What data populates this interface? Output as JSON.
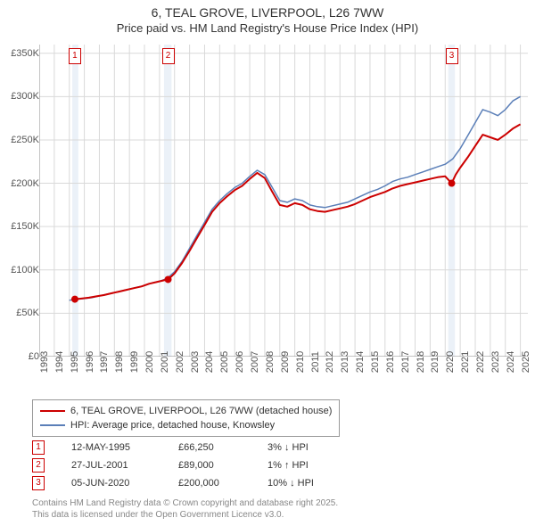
{
  "title": {
    "line1": "6, TEAL GROVE, LIVERPOOL, L26 7WW",
    "line2": "Price paid vs. HM Land Registry's House Price Index (HPI)"
  },
  "chart": {
    "type": "line",
    "background_color": "#ffffff",
    "grid_color": "#d9d9d9",
    "grid_width": 1,
    "axis_color": "#888",
    "x_axis": {
      "min": 1993,
      "max": 2025.5,
      "ticks": [
        1993,
        1994,
        1995,
        1996,
        1997,
        1998,
        1999,
        2000,
        2001,
        2002,
        2003,
        2004,
        2005,
        2006,
        2007,
        2008,
        2009,
        2010,
        2011,
        2012,
        2013,
        2014,
        2015,
        2016,
        2017,
        2018,
        2019,
        2020,
        2021,
        2022,
        2023,
        2024,
        2025
      ],
      "tick_labels": [
        "1993",
        "1994",
        "1995",
        "1996",
        "1997",
        "1998",
        "1999",
        "2000",
        "2001",
        "2002",
        "2003",
        "2004",
        "2005",
        "2006",
        "2007",
        "2008",
        "2009",
        "2010",
        "2011",
        "2012",
        "2013",
        "2014",
        "2015",
        "2016",
        "2017",
        "2018",
        "2019",
        "2020",
        "2021",
        "2022",
        "2023",
        "2024",
        "2025"
      ],
      "tick_fontsize": 11,
      "rotation": -90
    },
    "y_axis": {
      "min": 0,
      "max": 360000,
      "ticks": [
        0,
        50000,
        100000,
        150000,
        200000,
        250000,
        300000,
        350000
      ],
      "tick_labels": [
        "£0",
        "£50K",
        "£100K",
        "£150K",
        "£200K",
        "£250K",
        "£300K",
        "£350K"
      ],
      "tick_fontsize": 11
    },
    "vertical_bands": [
      {
        "x_start": 1995.2,
        "x_end": 1995.6,
        "color": "rgba(120,160,210,0.15)"
      },
      {
        "x_start": 2001.3,
        "x_end": 2001.8,
        "color": "rgba(120,160,210,0.15)"
      },
      {
        "x_start": 2020.2,
        "x_end": 2020.65,
        "color": "rgba(120,160,210,0.15)"
      }
    ],
    "series": [
      {
        "name": "hpi",
        "label": "HPI: Average price, detached house, Knowsley",
        "color": "#5b7fb8",
        "line_width": 1.5,
        "data": [
          [
            1995.0,
            65000
          ],
          [
            1995.5,
            66000
          ],
          [
            1996.0,
            67000
          ],
          [
            1996.5,
            68000
          ],
          [
            1997.0,
            70000
          ],
          [
            1997.5,
            72000
          ],
          [
            1998.0,
            74000
          ],
          [
            1998.5,
            76000
          ],
          [
            1999.0,
            78000
          ],
          [
            1999.5,
            80000
          ],
          [
            2000.0,
            82000
          ],
          [
            2000.5,
            85000
          ],
          [
            2001.0,
            87000
          ],
          [
            2001.5,
            90000
          ],
          [
            2002.0,
            98000
          ],
          [
            2002.5,
            110000
          ],
          [
            2003.0,
            125000
          ],
          [
            2003.5,
            140000
          ],
          [
            2004.0,
            155000
          ],
          [
            2004.5,
            170000
          ],
          [
            2005.0,
            180000
          ],
          [
            2005.5,
            188000
          ],
          [
            2006.0,
            195000
          ],
          [
            2006.5,
            200000
          ],
          [
            2007.0,
            208000
          ],
          [
            2007.5,
            215000
          ],
          [
            2008.0,
            210000
          ],
          [
            2008.5,
            195000
          ],
          [
            2009.0,
            180000
          ],
          [
            2009.5,
            178000
          ],
          [
            2010.0,
            182000
          ],
          [
            2010.5,
            180000
          ],
          [
            2011.0,
            175000
          ],
          [
            2011.5,
            173000
          ],
          [
            2012.0,
            172000
          ],
          [
            2012.5,
            174000
          ],
          [
            2013.0,
            176000
          ],
          [
            2013.5,
            178000
          ],
          [
            2014.0,
            182000
          ],
          [
            2014.5,
            186000
          ],
          [
            2015.0,
            190000
          ],
          [
            2015.5,
            193000
          ],
          [
            2016.0,
            197000
          ],
          [
            2016.5,
            202000
          ],
          [
            2017.0,
            205000
          ],
          [
            2017.5,
            207000
          ],
          [
            2018.0,
            210000
          ],
          [
            2018.5,
            213000
          ],
          [
            2019.0,
            216000
          ],
          [
            2019.5,
            219000
          ],
          [
            2020.0,
            222000
          ],
          [
            2020.5,
            228000
          ],
          [
            2021.0,
            240000
          ],
          [
            2021.5,
            255000
          ],
          [
            2022.0,
            270000
          ],
          [
            2022.5,
            285000
          ],
          [
            2023.0,
            282000
          ],
          [
            2023.5,
            278000
          ],
          [
            2024.0,
            285000
          ],
          [
            2024.5,
            295000
          ],
          [
            2025.0,
            300000
          ]
        ]
      },
      {
        "name": "price_paid",
        "label": "6, TEAL GROVE, LIVERPOOL, L26 7WW (detached house)",
        "color": "#cc0000",
        "line_width": 2,
        "data": [
          [
            1995.37,
            66250
          ],
          [
            1995.8,
            67000
          ],
          [
            1996.3,
            68000
          ],
          [
            1996.8,
            69500
          ],
          [
            1997.3,
            71000
          ],
          [
            1997.8,
            73000
          ],
          [
            1998.3,
            75000
          ],
          [
            1998.8,
            77000
          ],
          [
            1999.3,
            79000
          ],
          [
            1999.8,
            81000
          ],
          [
            2000.3,
            84000
          ],
          [
            2000.8,
            86000
          ],
          [
            2001.3,
            88000
          ],
          [
            2001.57,
            89000
          ],
          [
            2002.0,
            96000
          ],
          [
            2002.5,
            108000
          ],
          [
            2003.0,
            122000
          ],
          [
            2003.5,
            137000
          ],
          [
            2004.0,
            152000
          ],
          [
            2004.5,
            167000
          ],
          [
            2005.0,
            177000
          ],
          [
            2005.5,
            185000
          ],
          [
            2006.0,
            192000
          ],
          [
            2006.5,
            197000
          ],
          [
            2007.0,
            205000
          ],
          [
            2007.5,
            212000
          ],
          [
            2008.0,
            206000
          ],
          [
            2008.5,
            190000
          ],
          [
            2009.0,
            175000
          ],
          [
            2009.5,
            173000
          ],
          [
            2010.0,
            177000
          ],
          [
            2010.5,
            175000
          ],
          [
            2011.0,
            170000
          ],
          [
            2011.5,
            168000
          ],
          [
            2012.0,
            167000
          ],
          [
            2012.5,
            169000
          ],
          [
            2013.0,
            171000
          ],
          [
            2013.5,
            173000
          ],
          [
            2014.0,
            176000
          ],
          [
            2014.5,
            180000
          ],
          [
            2015.0,
            184000
          ],
          [
            2015.5,
            187000
          ],
          [
            2016.0,
            190000
          ],
          [
            2016.5,
            194000
          ],
          [
            2017.0,
            197000
          ],
          [
            2017.5,
            199000
          ],
          [
            2018.0,
            201000
          ],
          [
            2018.5,
            203000
          ],
          [
            2019.0,
            205000
          ],
          [
            2019.5,
            207000
          ],
          [
            2020.0,
            208000
          ],
          [
            2020.43,
            200000
          ],
          [
            2020.7,
            210000
          ],
          [
            2021.0,
            218000
          ],
          [
            2021.5,
            230000
          ],
          [
            2022.0,
            243000
          ],
          [
            2022.5,
            256000
          ],
          [
            2023.0,
            253000
          ],
          [
            2023.5,
            250000
          ],
          [
            2024.0,
            256000
          ],
          [
            2024.5,
            263000
          ],
          [
            2025.0,
            268000
          ]
        ]
      }
    ],
    "sale_markers": [
      {
        "n": "1",
        "x": 1995.37,
        "y": 66250
      },
      {
        "n": "2",
        "x": 2001.57,
        "y": 89000
      },
      {
        "n": "3",
        "x": 2020.43,
        "y": 200000
      }
    ],
    "marker_point_color": "#cc0000",
    "marker_point_radius": 4
  },
  "legend": {
    "items": [
      {
        "color": "#cc0000",
        "width": 2,
        "label_key": "chart.series.1.label"
      },
      {
        "color": "#5b7fb8",
        "width": 1.5,
        "label_key": "chart.series.0.label"
      }
    ]
  },
  "sales_table": {
    "rows": [
      {
        "n": "1",
        "date": "12-MAY-1995",
        "price": "£66,250",
        "diff": "3% ↓ HPI"
      },
      {
        "n": "2",
        "date": "27-JUL-2001",
        "price": "£89,000",
        "diff": "1% ↑ HPI"
      },
      {
        "n": "3",
        "date": "05-JUN-2020",
        "price": "£200,000",
        "diff": "10% ↓ HPI"
      }
    ]
  },
  "footer": {
    "line1": "Contains HM Land Registry data © Crown copyright and database right 2025.",
    "line2": "This data is licensed under the Open Government Licence v3.0."
  }
}
